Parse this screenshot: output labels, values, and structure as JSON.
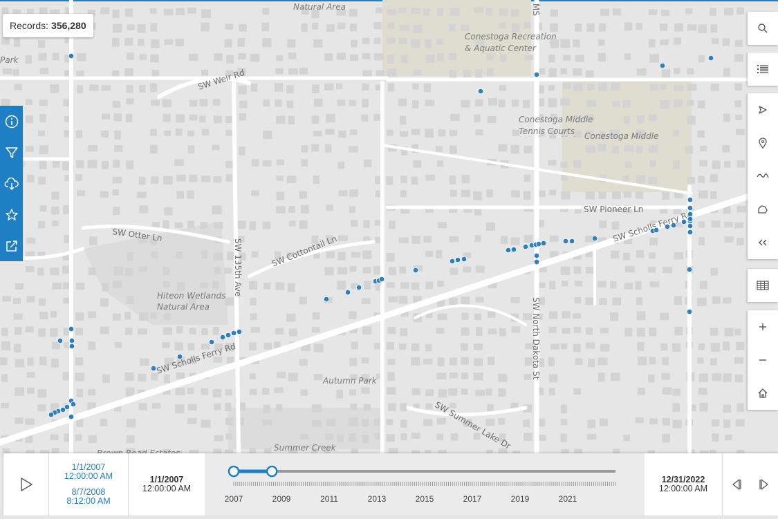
{
  "records": {
    "label": "Records:",
    "count": "356,280"
  },
  "map_labels": {
    "natural_area_top": "Natural Area",
    "park_left": "Park",
    "conestoga_rec_1": "Conestoga Recreation",
    "conestoga_rec_2": "& Aquatic Center",
    "conestoga_tennis_1": "Conestoga Middle",
    "conestoga_tennis_2": "Tennis Courts",
    "conestoga_middle": "Conestoga Middle",
    "hiteon_1": "Hiteon Wetlands",
    "hiteon_2": "Natural Area",
    "autumn_park": "Autumn Park",
    "summer_creek": "Summer Creek",
    "estates": "Brown Road Estates"
  },
  "road_labels": {
    "weir": "SW Weir Rd",
    "otter": "SW Otter Ln",
    "cottontail": "SW Cottontail Ln",
    "ave135": "SW 135th Ave",
    "pioneer": "SW Pioneer Ln",
    "scholls_west": "SW Scholls Ferry Rd",
    "scholls_east": "SW Scholls Ferry Rd",
    "north_dakota": "SW North Dakota St",
    "summer_lake": "SW Summer Lake Dr",
    "ms": "MS"
  },
  "left_tools": [
    {
      "name": "info-icon",
      "label": "Info"
    },
    {
      "name": "filter-icon",
      "label": "Filter"
    },
    {
      "name": "cloud-download-icon",
      "label": "Download"
    },
    {
      "name": "star-icon",
      "label": "Favorites"
    },
    {
      "name": "share-icon",
      "label": "Share"
    }
  ],
  "right_tools": [
    "search-icon",
    "list-icon",
    "navigate-icon",
    "marker-icon",
    "draw-line-icon",
    "draw-polygon-icon",
    "collapse-icon",
    "table-icon",
    "zoom-in-icon",
    "zoom-out-icon",
    "home-icon"
  ],
  "timeline": {
    "current_start_date": "1/1/2007",
    "current_start_time": "12:00:00 AM",
    "current_end_date": "8/7/2008",
    "current_end_time": "8:12:00 AM",
    "min_date": "1/1/2007",
    "min_time": "12:00:00 AM",
    "max_date": "12/31/2022",
    "max_time": "12:00:00 AM",
    "years": [
      "2007",
      "2009",
      "2011",
      "2013",
      "2015",
      "2017",
      "2019",
      "2021"
    ],
    "range_start_year": 2007.0,
    "range_end_year": 2008.6,
    "domain_start_year": 2007.0,
    "domain_end_year": 2023.0
  },
  "colors": {
    "accent": "#1f7fc4",
    "point": "#2e7fc1",
    "road": "#ffffff",
    "block": "#d3d3d3",
    "background": "#e6e6e6"
  }
}
